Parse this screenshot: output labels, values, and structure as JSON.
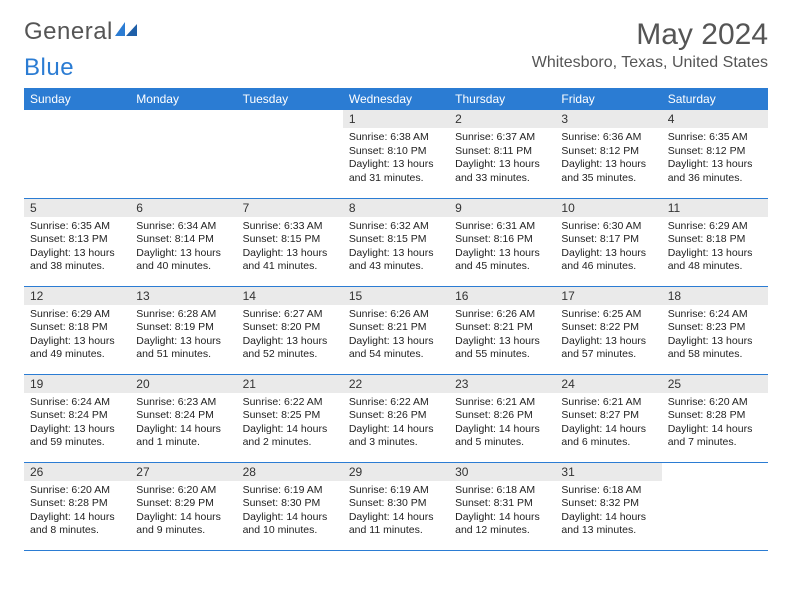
{
  "brand": {
    "part1": "General",
    "part2": "Blue"
  },
  "title": "May 2024",
  "location": "Whitesboro, Texas, United States",
  "colors": {
    "header_bg": "#2b7cd3",
    "header_text": "#ffffff",
    "daynum_bg": "#eaeaea",
    "border": "#2b7cd3",
    "text": "#222222",
    "title_text": "#555555"
  },
  "weekdays": [
    "Sunday",
    "Monday",
    "Tuesday",
    "Wednesday",
    "Thursday",
    "Friday",
    "Saturday"
  ],
  "weeks": [
    [
      null,
      null,
      null,
      {
        "n": "1",
        "sr": "6:38 AM",
        "ss": "8:10 PM",
        "dl": "13 hours and 31 minutes."
      },
      {
        "n": "2",
        "sr": "6:37 AM",
        "ss": "8:11 PM",
        "dl": "13 hours and 33 minutes."
      },
      {
        "n": "3",
        "sr": "6:36 AM",
        "ss": "8:12 PM",
        "dl": "13 hours and 35 minutes."
      },
      {
        "n": "4",
        "sr": "6:35 AM",
        "ss": "8:12 PM",
        "dl": "13 hours and 36 minutes."
      }
    ],
    [
      {
        "n": "5",
        "sr": "6:35 AM",
        "ss": "8:13 PM",
        "dl": "13 hours and 38 minutes."
      },
      {
        "n": "6",
        "sr": "6:34 AM",
        "ss": "8:14 PM",
        "dl": "13 hours and 40 minutes."
      },
      {
        "n": "7",
        "sr": "6:33 AM",
        "ss": "8:15 PM",
        "dl": "13 hours and 41 minutes."
      },
      {
        "n": "8",
        "sr": "6:32 AM",
        "ss": "8:15 PM",
        "dl": "13 hours and 43 minutes."
      },
      {
        "n": "9",
        "sr": "6:31 AM",
        "ss": "8:16 PM",
        "dl": "13 hours and 45 minutes."
      },
      {
        "n": "10",
        "sr": "6:30 AM",
        "ss": "8:17 PM",
        "dl": "13 hours and 46 minutes."
      },
      {
        "n": "11",
        "sr": "6:29 AM",
        "ss": "8:18 PM",
        "dl": "13 hours and 48 minutes."
      }
    ],
    [
      {
        "n": "12",
        "sr": "6:29 AM",
        "ss": "8:18 PM",
        "dl": "13 hours and 49 minutes."
      },
      {
        "n": "13",
        "sr": "6:28 AM",
        "ss": "8:19 PM",
        "dl": "13 hours and 51 minutes."
      },
      {
        "n": "14",
        "sr": "6:27 AM",
        "ss": "8:20 PM",
        "dl": "13 hours and 52 minutes."
      },
      {
        "n": "15",
        "sr": "6:26 AM",
        "ss": "8:21 PM",
        "dl": "13 hours and 54 minutes."
      },
      {
        "n": "16",
        "sr": "6:26 AM",
        "ss": "8:21 PM",
        "dl": "13 hours and 55 minutes."
      },
      {
        "n": "17",
        "sr": "6:25 AM",
        "ss": "8:22 PM",
        "dl": "13 hours and 57 minutes."
      },
      {
        "n": "18",
        "sr": "6:24 AM",
        "ss": "8:23 PM",
        "dl": "13 hours and 58 minutes."
      }
    ],
    [
      {
        "n": "19",
        "sr": "6:24 AM",
        "ss": "8:24 PM",
        "dl": "13 hours and 59 minutes."
      },
      {
        "n": "20",
        "sr": "6:23 AM",
        "ss": "8:24 PM",
        "dl": "14 hours and 1 minute."
      },
      {
        "n": "21",
        "sr": "6:22 AM",
        "ss": "8:25 PM",
        "dl": "14 hours and 2 minutes."
      },
      {
        "n": "22",
        "sr": "6:22 AM",
        "ss": "8:26 PM",
        "dl": "14 hours and 3 minutes."
      },
      {
        "n": "23",
        "sr": "6:21 AM",
        "ss": "8:26 PM",
        "dl": "14 hours and 5 minutes."
      },
      {
        "n": "24",
        "sr": "6:21 AM",
        "ss": "8:27 PM",
        "dl": "14 hours and 6 minutes."
      },
      {
        "n": "25",
        "sr": "6:20 AM",
        "ss": "8:28 PM",
        "dl": "14 hours and 7 minutes."
      }
    ],
    [
      {
        "n": "26",
        "sr": "6:20 AM",
        "ss": "8:28 PM",
        "dl": "14 hours and 8 minutes."
      },
      {
        "n": "27",
        "sr": "6:20 AM",
        "ss": "8:29 PM",
        "dl": "14 hours and 9 minutes."
      },
      {
        "n": "28",
        "sr": "6:19 AM",
        "ss": "8:30 PM",
        "dl": "14 hours and 10 minutes."
      },
      {
        "n": "29",
        "sr": "6:19 AM",
        "ss": "8:30 PM",
        "dl": "14 hours and 11 minutes."
      },
      {
        "n": "30",
        "sr": "6:18 AM",
        "ss": "8:31 PM",
        "dl": "14 hours and 12 minutes."
      },
      {
        "n": "31",
        "sr": "6:18 AM",
        "ss": "8:32 PM",
        "dl": "14 hours and 13 minutes."
      },
      null
    ]
  ]
}
